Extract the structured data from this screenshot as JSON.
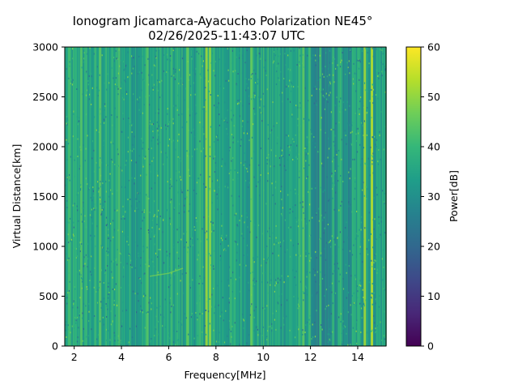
{
  "chart_data": {
    "type": "heatmap",
    "title": "Ionogram Jicamarca-Ayacucho Polarization NE45°",
    "subtitle": "02/26/2025-11:43:07 UTC",
    "xlabel": "Frequency[MHz]",
    "ylabel": "Virtual Distance[km]",
    "xlim": [
      1.6,
      15.2
    ],
    "ylim": [
      0,
      3000
    ],
    "x_ticks": [
      2,
      4,
      6,
      8,
      10,
      12,
      14
    ],
    "y_ticks": [
      0,
      500,
      1000,
      1500,
      2000,
      2500,
      3000
    ],
    "colormap": "viridis",
    "colorbar": {
      "label": "Power[dB]",
      "range": [
        0,
        60
      ],
      "ticks": [
        0,
        10,
        20,
        30,
        40,
        50,
        60
      ]
    },
    "background_power_db": 35,
    "bright_bands_mhz": [
      {
        "freq": 1.8,
        "power_db": 42
      },
      {
        "freq": 2.3,
        "power_db": 44
      },
      {
        "freq": 3.1,
        "power_db": 45
      },
      {
        "freq": 3.9,
        "power_db": 43
      },
      {
        "freq": 5.1,
        "power_db": 44
      },
      {
        "freq": 6.8,
        "power_db": 46
      },
      {
        "freq": 7.6,
        "power_db": 52
      },
      {
        "freq": 7.75,
        "power_db": 50
      },
      {
        "freq": 9.5,
        "power_db": 46
      },
      {
        "freq": 11.7,
        "power_db": 45
      },
      {
        "freq": 14.3,
        "power_db": 52
      },
      {
        "freq": 14.6,
        "power_db": 54
      }
    ],
    "dark_bands_mhz": [
      {
        "freq": 12.5,
        "power_db": 24
      },
      {
        "freq": 13.2,
        "power_db": 28
      }
    ],
    "echo_trace": [
      {
        "freq": 5.2,
        "distance_km": 700
      },
      {
        "freq": 6.0,
        "distance_km": 730
      },
      {
        "freq": 6.6,
        "distance_km": 780
      }
    ]
  },
  "colors": {
    "viridis": [
      "#440154",
      "#482878",
      "#3e4989",
      "#31688e",
      "#26828e",
      "#1f9e89",
      "#35b779",
      "#6ece58",
      "#b5de2b",
      "#fde725"
    ]
  }
}
